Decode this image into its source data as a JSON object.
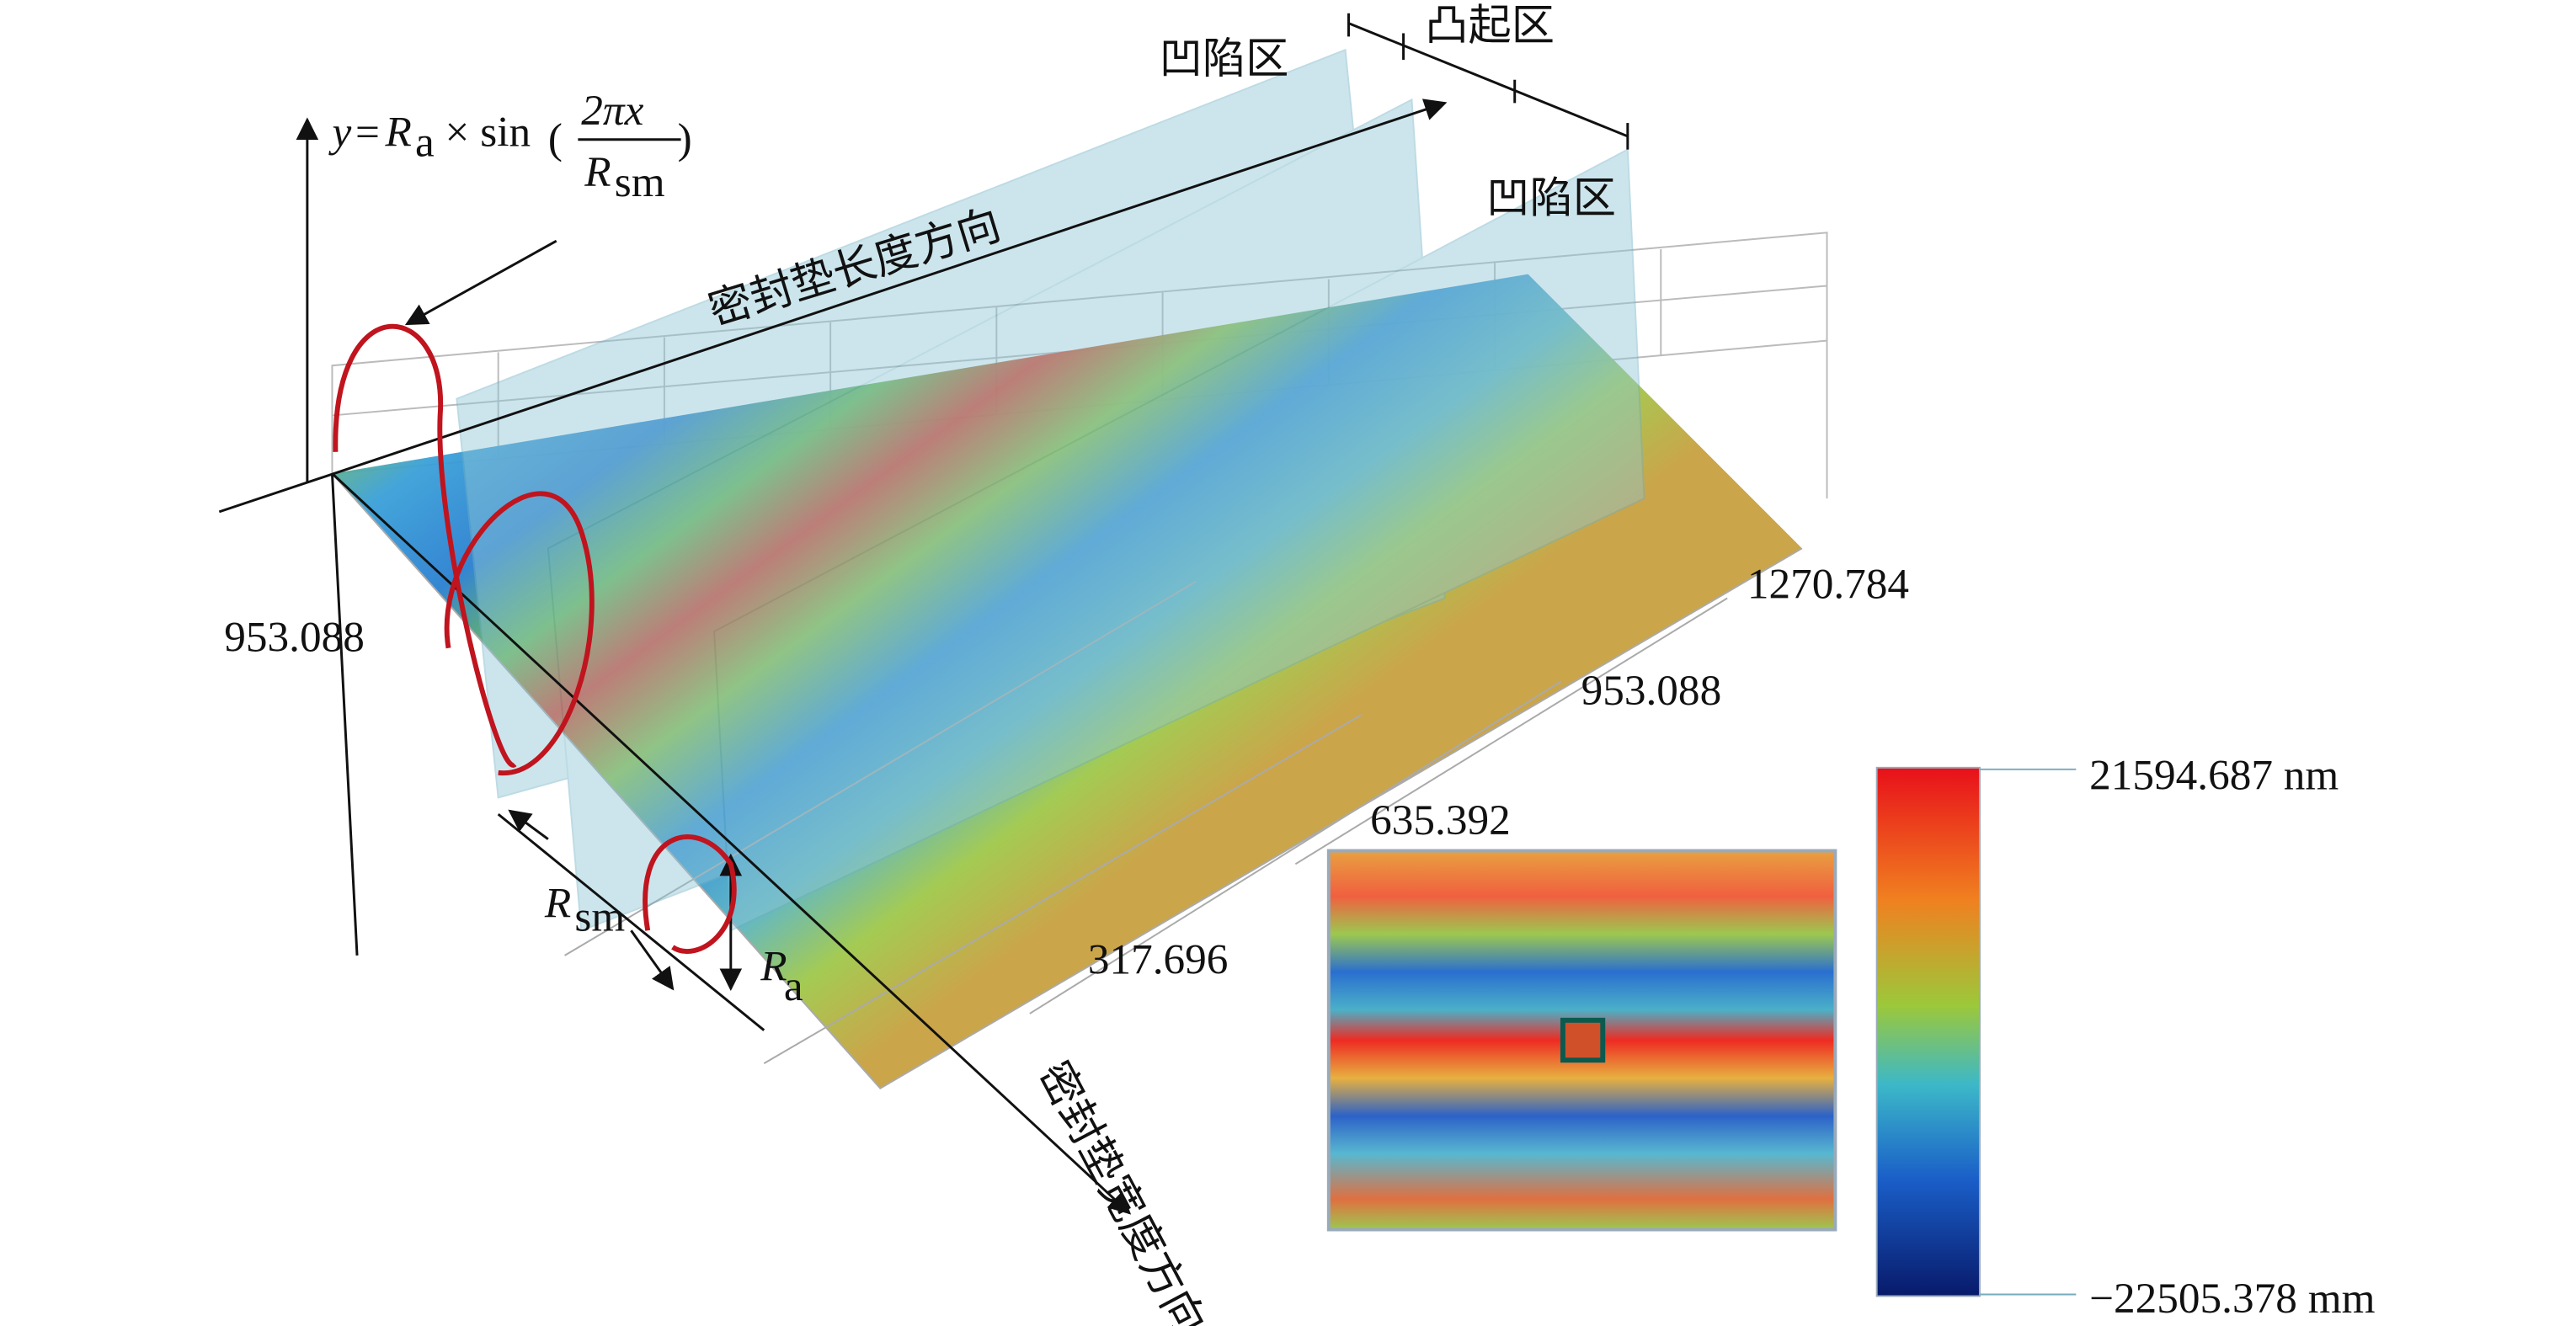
{
  "formula": {
    "lhs": "y",
    "eq": "=",
    "r": "R",
    "r_sub": "a",
    "op": "× sin",
    "num": "2πx",
    "den": "R",
    "den_sub": "sm"
  },
  "directions": {
    "length": "密封垫长度方向",
    "width": "密封垫宽度方向"
  },
  "zones": {
    "top_left": "凹陷区",
    "top_right": "凸起区",
    "right": "凹陷区"
  },
  "axis_labels": {
    "left": "953.088",
    "right_far": "1270.784",
    "right_mid": "953.088",
    "front_mid": "635.392",
    "front_near": "317.696"
  },
  "symbols": {
    "rsm": "R",
    "rsm_sub": "sm",
    "ra": "R",
    "ra_sub": "a"
  },
  "colorbar": {
    "max": "21594.687 nm",
    "min": "−22505.378 mm"
  }
}
